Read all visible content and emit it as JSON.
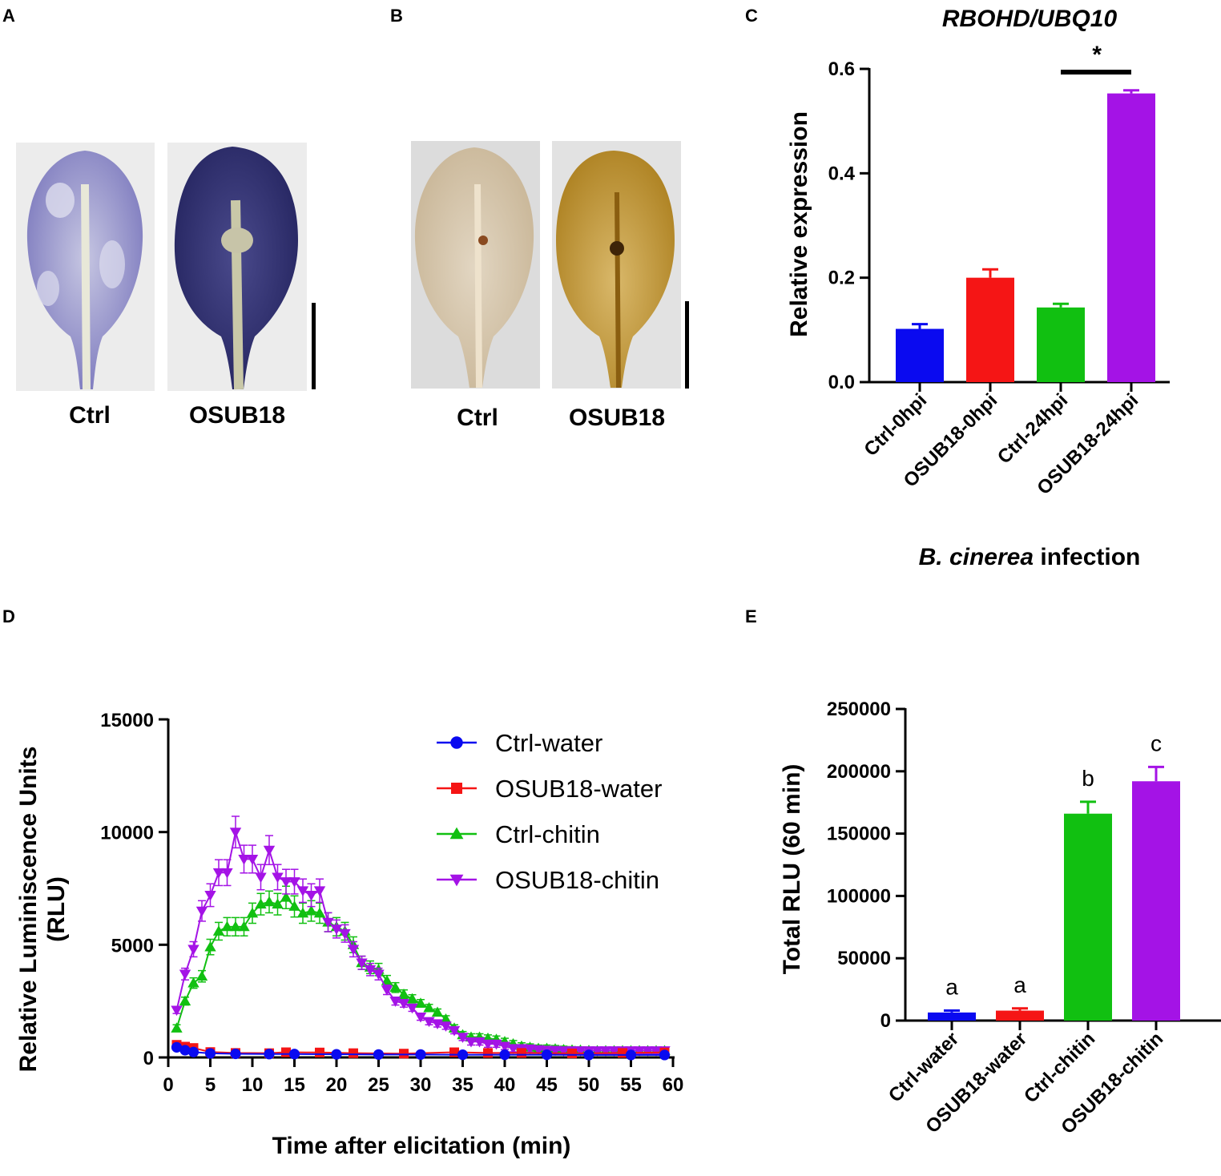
{
  "panels": {
    "a": {
      "label": "A",
      "captions": [
        "Ctrl",
        "OSUB18"
      ]
    },
    "b": {
      "label": "B",
      "captions": [
        "Ctrl",
        "OSUB18"
      ]
    },
    "c": {
      "label": "C"
    },
    "d": {
      "label": "D"
    },
    "e": {
      "label": "E"
    }
  },
  "colors": {
    "blue": "#0a0af0",
    "red": "#f51515",
    "green": "#11c011",
    "purple": "#a413e6"
  },
  "chart_data": [
    {
      "id": "C",
      "type": "bar",
      "title": "RBOHD/UBQ10",
      "ylabel": "Relative expression",
      "xlabel_italic": "B. cinerea",
      "xlabel_rest": " infection",
      "categories": [
        "Ctrl-0hpi",
        "OSUB18-0hpi",
        "Ctrl-24hpi",
        "OSUB18-24hpi"
      ],
      "values": [
        0.102,
        0.2,
        0.143,
        0.553
      ],
      "errors": [
        0.009,
        0.016,
        0.007,
        0.006
      ],
      "ylim": [
        0,
        0.6
      ],
      "yticks": [
        0.0,
        0.2,
        0.4,
        0.6
      ],
      "ytick_labels": [
        "0.0",
        "0.2",
        "0.4",
        "0.6"
      ],
      "significance": {
        "between": [
          2,
          3
        ],
        "label": "*"
      }
    },
    {
      "id": "D",
      "type": "line",
      "xlabel": "Time after elicitation (min)",
      "ylabel_line1": "Relative Luminiscence Units",
      "ylabel_line2": "(RLU)",
      "xlim": [
        0,
        60
      ],
      "ylim": [
        0,
        15000
      ],
      "xticks": [
        0,
        5,
        10,
        15,
        20,
        25,
        30,
        35,
        40,
        45,
        50,
        55,
        60
      ],
      "yticks": [
        0,
        5000,
        10000,
        15000
      ],
      "ytick_labels": [
        "0",
        "5000",
        "10000",
        "15000"
      ],
      "legend_position": "top-right",
      "series": [
        {
          "name": "Ctrl-water",
          "marker": "circle",
          "x": [
            1,
            2,
            3,
            5,
            8,
            12,
            15,
            20,
            25,
            30,
            35,
            40,
            45,
            50,
            55,
            59
          ],
          "values": [
            450,
            320,
            240,
            180,
            160,
            150,
            150,
            140,
            130,
            130,
            120,
            120,
            120,
            110,
            110,
            110
          ]
        },
        {
          "name": "OSUB18-water",
          "marker": "square",
          "x": [
            1,
            2,
            3,
            5,
            8,
            12,
            14,
            18,
            22,
            28,
            34,
            38,
            42,
            48,
            54,
            59
          ],
          "values": [
            560,
            480,
            420,
            240,
            200,
            190,
            230,
            220,
            190,
            170,
            230,
            200,
            200,
            180,
            200,
            220
          ]
        },
        {
          "name": "Ctrl-chitin",
          "marker": "triangle-up",
          "x": [
            1,
            2,
            3,
            4,
            5,
            6,
            7,
            8,
            9,
            10,
            11,
            12,
            13,
            14,
            15,
            16,
            17,
            18,
            19,
            20,
            21,
            22,
            23,
            24,
            25,
            26,
            27,
            28,
            29,
            30,
            31,
            32,
            33,
            34,
            35,
            36,
            37,
            38,
            39,
            40,
            41,
            42,
            43,
            44,
            45,
            46,
            47,
            48,
            49,
            50,
            51,
            52,
            53,
            54,
            55,
            56,
            57,
            58,
            59
          ],
          "values": [
            1300,
            2500,
            3300,
            3600,
            4900,
            5600,
            5800,
            5800,
            5800,
            6400,
            6800,
            6900,
            6800,
            7100,
            6700,
            6400,
            6500,
            6400,
            6000,
            5800,
            5600,
            5000,
            4200,
            4000,
            3900,
            3400,
            3100,
            2800,
            2600,
            2400,
            2200,
            2000,
            1700,
            1300,
            1000,
            900,
            900,
            850,
            800,
            700,
            600,
            500,
            450,
            400,
            400,
            380,
            350,
            330,
            320,
            310,
            300,
            300,
            300,
            300,
            300,
            300,
            300,
            300,
            300
          ]
        },
        {
          "name": "OSUB18-chitin",
          "marker": "triangle-down",
          "x": [
            1,
            2,
            3,
            4,
            5,
            6,
            7,
            8,
            9,
            10,
            11,
            12,
            13,
            14,
            15,
            16,
            17,
            18,
            19,
            20,
            21,
            22,
            23,
            24,
            25,
            26,
            27,
            28,
            29,
            30,
            31,
            32,
            33,
            34,
            35,
            36,
            37,
            38,
            39,
            40,
            41,
            42,
            43,
            44,
            45,
            46,
            47,
            48,
            49,
            50,
            51,
            52,
            53,
            54,
            55,
            56,
            57,
            58,
            59
          ],
          "values": [
            2100,
            3700,
            4800,
            6500,
            7200,
            8200,
            8200,
            10000,
            8800,
            8800,
            8000,
            9200,
            8000,
            7800,
            7800,
            7400,
            7200,
            7400,
            6000,
            5700,
            5500,
            4800,
            4200,
            3900,
            3700,
            3000,
            2500,
            2400,
            2200,
            1800,
            1600,
            1500,
            1400,
            1200,
            900,
            700,
            700,
            600,
            600,
            500,
            400,
            400,
            380,
            350,
            330,
            320,
            300,
            300,
            300,
            300,
            300,
            300,
            300,
            300,
            300,
            300,
            300,
            300,
            300
          ]
        }
      ]
    },
    {
      "id": "E",
      "type": "bar",
      "ylabel": "Total RLU (60 min)",
      "categories": [
        "Ctrl-water",
        "OSUB18-water",
        "Ctrl-chitin",
        "OSUB18-chitin"
      ],
      "values": [
        6500,
        8000,
        166000,
        192000
      ],
      "errors": [
        1500,
        1800,
        9500,
        11500
      ],
      "group_letters": [
        "a",
        "a",
        "b",
        "c"
      ],
      "ylim": [
        0,
        250000
      ],
      "yticks": [
        0,
        50000,
        100000,
        150000,
        200000,
        250000
      ],
      "ytick_labels": [
        "0",
        "50000",
        "100000",
        "150000",
        "200000",
        "250000"
      ]
    }
  ]
}
